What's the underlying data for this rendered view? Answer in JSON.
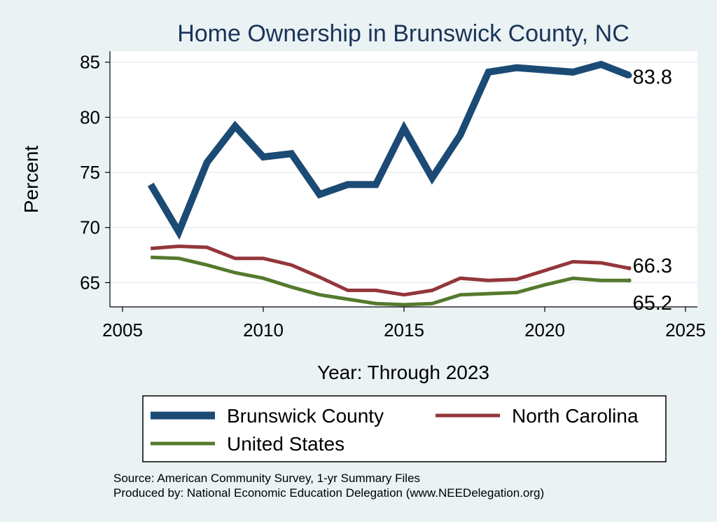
{
  "chart_data": {
    "type": "line",
    "title": "Home Ownership in Brunswick County, NC",
    "xlabel": "Year: Through 2023",
    "ylabel": "Percent",
    "xlim": [
      2005,
      2025
    ],
    "ylim": [
      62.8,
      86
    ],
    "x_ticks": [
      "2005",
      "2010",
      "2015",
      "2020",
      "2025"
    ],
    "y_ticks": [
      "65",
      "70",
      "75",
      "80",
      "85"
    ],
    "grid": "horizontal",
    "legend_position": "bottom",
    "x": [
      2006,
      2007,
      2008,
      2009,
      2010,
      2011,
      2012,
      2013,
      2014,
      2015,
      2016,
      2017,
      2018,
      2019,
      2020,
      2021,
      2022,
      2023
    ],
    "series": [
      {
        "name": "Brunswick County",
        "color": "#1b4a75",
        "values": [
          73.9,
          69.6,
          75.9,
          79.2,
          76.4,
          76.7,
          73.0,
          73.9,
          73.9,
          79.0,
          74.5,
          78.4,
          84.1,
          84.5,
          84.3,
          84.1,
          84.8,
          83.8
        ],
        "end_label": "83.8"
      },
      {
        "name": "North Carolina",
        "color": "#93363a",
        "values": [
          68.1,
          68.3,
          68.2,
          67.2,
          67.2,
          66.6,
          65.5,
          64.3,
          64.3,
          63.9,
          64.3,
          65.4,
          65.2,
          65.3,
          66.1,
          66.9,
          66.8,
          66.3
        ],
        "end_label": "66.3"
      },
      {
        "name": "United States",
        "color": "#55792d",
        "values": [
          67.3,
          67.2,
          66.6,
          65.9,
          65.4,
          64.6,
          63.9,
          63.5,
          63.1,
          63.0,
          63.1,
          63.9,
          64.0,
          64.1,
          64.8,
          65.4,
          65.2,
          65.2
        ],
        "end_label": "65.2"
      }
    ],
    "notes": [
      "Source: American Community Survey, 1-yr Summary Files",
      "Produced by: National Economic Education Delegation (www.NEEDelegation.org)"
    ]
  }
}
